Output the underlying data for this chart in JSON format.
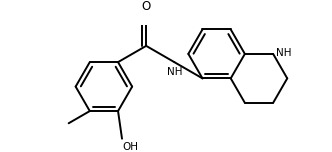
{
  "bg": "#ffffff",
  "lc": "#000000",
  "lw": 1.4,
  "fs": 7.5,
  "xlim": [
    0,
    3.32
  ],
  "ylim": [
    0,
    1.52
  ]
}
